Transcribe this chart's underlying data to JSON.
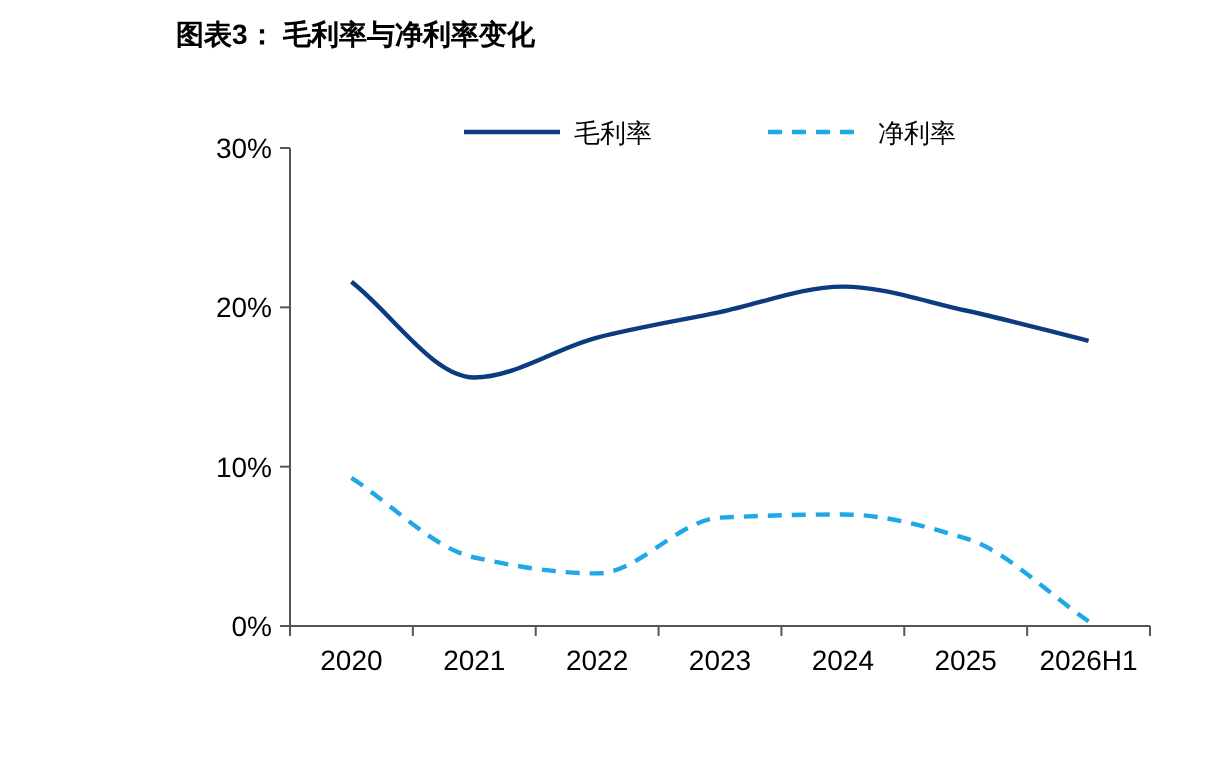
{
  "chart_data": {
    "type": "line",
    "title": "图表3： 毛利率与净利率变化",
    "categories": [
      "2020",
      "2021",
      "2022",
      "2023",
      "2024",
      "2025",
      "2026H1"
    ],
    "series": [
      {
        "name": "毛利率",
        "color": "#0c3b80",
        "line_style": "solid",
        "values": [
          21.6,
          15.6,
          18.1,
          19.7,
          21.3,
          19.8,
          17.9
        ]
      },
      {
        "name": "净利率",
        "color": "#1fa8e6",
        "line_style": "dashed",
        "values": [
          9.3,
          4.3,
          3.3,
          6.8,
          7.0,
          5.5,
          0.3
        ]
      }
    ],
    "ylim": [
      0,
      30
    ],
    "yticks": [
      {
        "value": 0,
        "label": "0%"
      },
      {
        "value": 10,
        "label": "10%"
      },
      {
        "value": 20,
        "label": "20%"
      },
      {
        "value": 30,
        "label": "30%"
      }
    ],
    "grid": false,
    "legend": "top",
    "marker": "none"
  }
}
